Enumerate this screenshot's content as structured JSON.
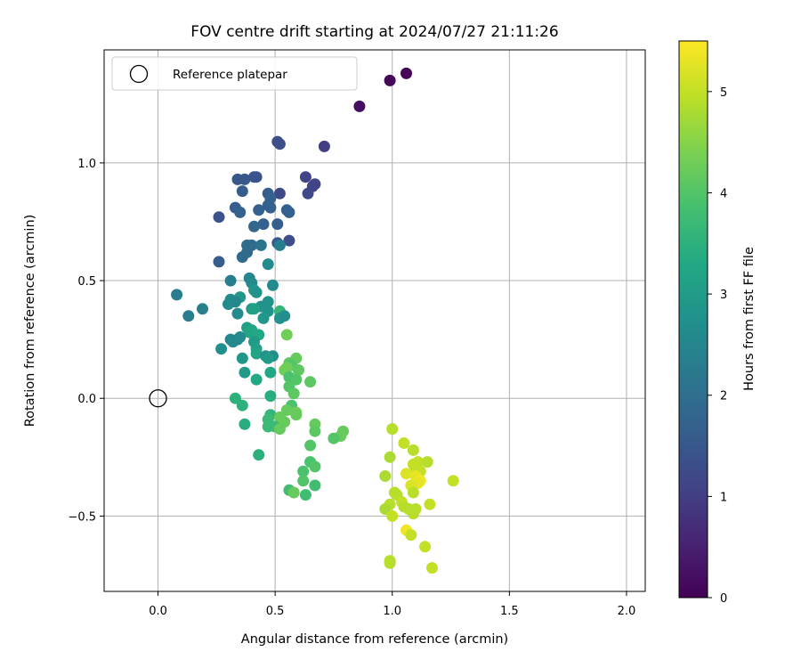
{
  "chart_data": {
    "type": "scatter",
    "title": "FOV centre drift starting at 2024/07/27 21:11:26",
    "xlabel": "Angular distance from reference (arcmin)",
    "ylabel": "Rotation from reference (arcmin)",
    "xlim": [
      -0.23,
      2.08
    ],
    "ylim": [
      -0.82,
      1.48
    ],
    "xticks": [
      0.0,
      0.5,
      1.0,
      1.5,
      2.0
    ],
    "xtick_labels": [
      "0.0",
      "0.5",
      "1.0",
      "1.5",
      "2.0"
    ],
    "yticks": [
      -0.5,
      0.0,
      0.5,
      1.0
    ],
    "ytick_labels": [
      "−0.5",
      "0.0",
      "0.5",
      "1.0"
    ],
    "grid": true,
    "legend": {
      "label": "Reference platepar",
      "placement": "top-left"
    },
    "reference_point": {
      "x": 0.0,
      "y": 0.0
    },
    "colorbar": {
      "label": "Hours from first FF file",
      "colormap": "viridis",
      "range": [
        0,
        5.5
      ],
      "ticks": [
        0,
        1,
        2,
        3,
        4,
        5
      ],
      "tick_labels": [
        "0",
        "1",
        "2",
        "3",
        "4",
        "5"
      ]
    },
    "points": [
      [
        1.06,
        1.38,
        0.05
      ],
      [
        0.99,
        1.35,
        0.1
      ],
      [
        0.86,
        1.24,
        0.2
      ],
      [
        0.51,
        1.09,
        1.3
      ],
      [
        0.52,
        1.08,
        1.3
      ],
      [
        0.71,
        1.07,
        1.0
      ],
      [
        0.63,
        0.94,
        1.1
      ],
      [
        0.41,
        0.94,
        1.4
      ],
      [
        0.42,
        0.94,
        1.4
      ],
      [
        0.37,
        0.93,
        1.5
      ],
      [
        0.34,
        0.93,
        1.5
      ],
      [
        0.67,
        0.91,
        1.1
      ],
      [
        0.66,
        0.9,
        1.1
      ],
      [
        0.36,
        0.88,
        1.6
      ],
      [
        0.47,
        0.87,
        1.6
      ],
      [
        0.52,
        0.87,
        1.2
      ],
      [
        0.64,
        0.87,
        1.2
      ],
      [
        0.48,
        0.85,
        1.7
      ],
      [
        0.47,
        0.82,
        1.7
      ],
      [
        0.48,
        0.81,
        1.7
      ],
      [
        0.43,
        0.8,
        1.7
      ],
      [
        0.33,
        0.81,
        1.6
      ],
      [
        0.35,
        0.79,
        1.7
      ],
      [
        0.55,
        0.8,
        1.7
      ],
      [
        0.56,
        0.79,
        1.7
      ],
      [
        0.26,
        0.77,
        1.4
      ],
      [
        0.51,
        0.74,
        1.6
      ],
      [
        0.45,
        0.74,
        1.7
      ],
      [
        0.41,
        0.73,
        1.8
      ],
      [
        0.56,
        0.67,
        1.3
      ],
      [
        0.51,
        0.66,
        1.5
      ],
      [
        0.38,
        0.65,
        2.0
      ],
      [
        0.4,
        0.65,
        1.9
      ],
      [
        0.44,
        0.65,
        2.1
      ],
      [
        0.52,
        0.65,
        2.3
      ],
      [
        0.36,
        0.6,
        1.9
      ],
      [
        0.38,
        0.62,
        1.9
      ],
      [
        0.26,
        0.58,
        1.6
      ],
      [
        0.47,
        0.57,
        2.6
      ],
      [
        0.31,
        0.5,
        2.3
      ],
      [
        0.39,
        0.51,
        2.5
      ],
      [
        0.4,
        0.49,
        2.6
      ],
      [
        0.49,
        0.48,
        2.6
      ],
      [
        0.41,
        0.46,
        2.9
      ],
      [
        0.42,
        0.45,
        2.8
      ],
      [
        0.08,
        0.44,
        2.3
      ],
      [
        0.35,
        0.43,
        2.9
      ],
      [
        0.31,
        0.42,
        2.7
      ],
      [
        0.33,
        0.41,
        2.5
      ],
      [
        0.47,
        0.41,
        2.8
      ],
      [
        0.3,
        0.4,
        2.6
      ],
      [
        0.44,
        0.39,
        2.8
      ],
      [
        0.4,
        0.38,
        3.0
      ],
      [
        0.41,
        0.38,
        3.1
      ],
      [
        0.52,
        0.37,
        3.6
      ],
      [
        0.19,
        0.38,
        2.4
      ],
      [
        0.34,
        0.36,
        2.6
      ],
      [
        0.47,
        0.37,
        2.8
      ],
      [
        0.13,
        0.35,
        2.3
      ],
      [
        0.52,
        0.34,
        2.8
      ],
      [
        0.45,
        0.34,
        2.9
      ],
      [
        0.54,
        0.35,
        2.7
      ],
      [
        0.38,
        0.3,
        3.1
      ],
      [
        0.4,
        0.29,
        3.2
      ],
      [
        0.39,
        0.28,
        3.2
      ],
      [
        0.43,
        0.27,
        3.3
      ],
      [
        0.55,
        0.27,
        4.3
      ],
      [
        0.31,
        0.25,
        2.5
      ],
      [
        0.32,
        0.24,
        2.6
      ],
      [
        0.34,
        0.25,
        2.5
      ],
      [
        0.35,
        0.26,
        2.6
      ],
      [
        0.41,
        0.24,
        3.0
      ],
      [
        0.42,
        0.21,
        3.1
      ],
      [
        0.27,
        0.21,
        2.7
      ],
      [
        0.42,
        0.19,
        3.2
      ],
      [
        0.49,
        0.18,
        2.7
      ],
      [
        0.46,
        0.18,
        2.8
      ],
      [
        0.47,
        0.17,
        3.0
      ],
      [
        0.59,
        0.17,
        4.2
      ],
      [
        0.36,
        0.17,
        2.9
      ],
      [
        0.56,
        0.15,
        4.1
      ],
      [
        0.57,
        0.14,
        4.0
      ],
      [
        0.55,
        0.13,
        4.3
      ],
      [
        0.54,
        0.12,
        4.3
      ],
      [
        0.6,
        0.12,
        4.1
      ],
      [
        0.37,
        0.11,
        3.0
      ],
      [
        0.48,
        0.11,
        3.3
      ],
      [
        0.56,
        0.09,
        3.9
      ],
      [
        0.59,
        0.08,
        4.0
      ],
      [
        0.42,
        0.08,
        3.3
      ],
      [
        0.65,
        0.07,
        4.1
      ],
      [
        0.56,
        0.05,
        4.0
      ],
      [
        0.58,
        0.02,
        4.1
      ],
      [
        0.48,
        0.01,
        3.4
      ],
      [
        0.33,
        0.0,
        3.5
      ],
      [
        0.36,
        -0.03,
        3.5
      ],
      [
        0.57,
        -0.03,
        3.9
      ],
      [
        0.55,
        -0.05,
        4.2
      ],
      [
        0.59,
        -0.06,
        4.3
      ],
      [
        0.59,
        -0.07,
        4.2
      ],
      [
        0.48,
        -0.07,
        3.6
      ],
      [
        0.47,
        -0.09,
        3.7
      ],
      [
        0.52,
        -0.08,
        4.2
      ],
      [
        0.54,
        -0.1,
        4.2
      ],
      [
        0.37,
        -0.11,
        3.4
      ],
      [
        0.67,
        -0.11,
        4.2
      ],
      [
        0.51,
        -0.12,
        4.3
      ],
      [
        0.47,
        -0.12,
        3.7
      ],
      [
        0.5,
        -0.12,
        3.7
      ],
      [
        0.52,
        -0.13,
        4.2
      ],
      [
        0.67,
        -0.14,
        4.1
      ],
      [
        0.79,
        -0.14,
        4.2
      ],
      [
        0.78,
        -0.16,
        4.2
      ],
      [
        0.75,
        -0.17,
        4.0
      ],
      [
        0.65,
        -0.2,
        4.0
      ],
      [
        0.43,
        -0.24,
        3.5
      ],
      [
        0.65,
        -0.27,
        3.9
      ],
      [
        0.67,
        -0.29,
        4.0
      ],
      [
        0.62,
        -0.31,
        3.9
      ],
      [
        0.62,
        -0.35,
        4.0
      ],
      [
        0.67,
        -0.37,
        3.8
      ],
      [
        0.56,
        -0.39,
        3.8
      ],
      [
        0.58,
        -0.4,
        4.2
      ],
      [
        0.63,
        -0.41,
        3.8
      ],
      [
        1.0,
        -0.13,
        4.9
      ],
      [
        1.05,
        -0.19,
        5.0
      ],
      [
        1.09,
        -0.22,
        4.9
      ],
      [
        0.99,
        -0.25,
        4.8
      ],
      [
        1.11,
        -0.27,
        5.0
      ],
      [
        1.15,
        -0.27,
        4.9
      ],
      [
        1.09,
        -0.28,
        5.0
      ],
      [
        1.1,
        -0.3,
        5.0
      ],
      [
        1.12,
        -0.31,
        5.0
      ],
      [
        1.06,
        -0.32,
        5.2
      ],
      [
        1.1,
        -0.33,
        5.3
      ],
      [
        0.97,
        -0.33,
        4.8
      ],
      [
        1.12,
        -0.35,
        5.4
      ],
      [
        1.11,
        -0.36,
        5.3
      ],
      [
        1.26,
        -0.35,
        5.0
      ],
      [
        1.08,
        -0.37,
        5.2
      ],
      [
        1.01,
        -0.4,
        4.9
      ],
      [
        1.09,
        -0.4,
        4.9
      ],
      [
        1.02,
        -0.41,
        4.9
      ],
      [
        1.04,
        -0.44,
        5.0
      ],
      [
        1.16,
        -0.45,
        5.0
      ],
      [
        0.99,
        -0.45,
        4.9
      ],
      [
        1.05,
        -0.46,
        4.9
      ],
      [
        1.07,
        -0.47,
        4.9
      ],
      [
        1.1,
        -0.47,
        4.9
      ],
      [
        0.97,
        -0.47,
        4.8
      ],
      [
        1.09,
        -0.49,
        4.9
      ],
      [
        1.0,
        -0.5,
        5.0
      ],
      [
        1.06,
        -0.56,
        5.4
      ],
      [
        1.08,
        -0.58,
        5.0
      ],
      [
        1.14,
        -0.63,
        5.0
      ],
      [
        0.99,
        -0.69,
        4.9
      ],
      [
        0.99,
        -0.7,
        4.9
      ],
      [
        1.17,
        -0.72,
        5.0
      ]
    ]
  }
}
